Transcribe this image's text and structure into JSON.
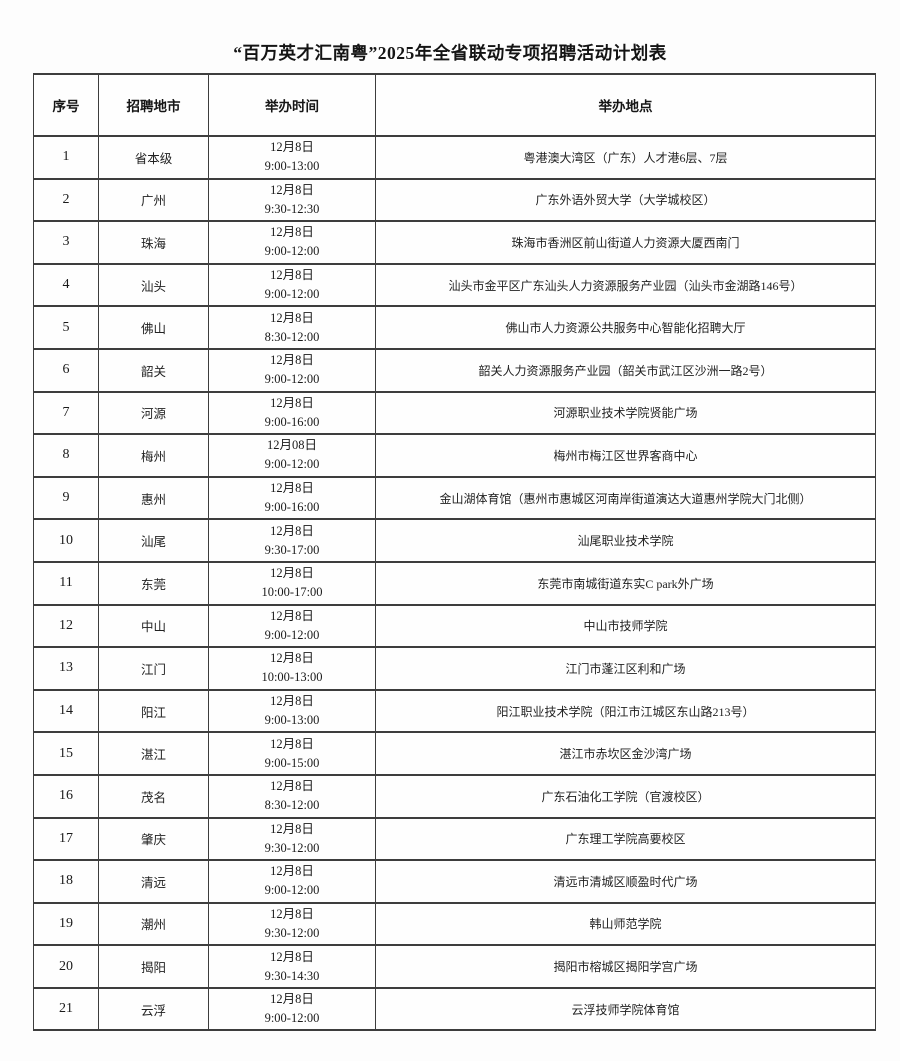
{
  "title": "“百万英才汇南粤”2025年全省联动专项招聘活动计划表",
  "table": {
    "columns": [
      "序号",
      "招聘地市",
      "举办时间",
      "举办地点"
    ],
    "rows": [
      {
        "seq": "1",
        "city": "省本级",
        "date": "12月8日",
        "time": "9:00-13:00",
        "location": "粤港澳大湾区（广东）人才港6层、7层"
      },
      {
        "seq": "2",
        "city": "广州",
        "date": "12月8日",
        "time": "9:30-12:30",
        "location": "广东外语外贸大学（大学城校区）"
      },
      {
        "seq": "3",
        "city": "珠海",
        "date": "12月8日",
        "time": "9:00-12:00",
        "location": "珠海市香洲区前山街道人力资源大厦西南门"
      },
      {
        "seq": "4",
        "city": "汕头",
        "date": "12月8日",
        "time": "9:00-12:00",
        "location": "汕头市金平区广东汕头人力资源服务产业园（汕头市金湖路146号）"
      },
      {
        "seq": "5",
        "city": "佛山",
        "date": "12月8日",
        "time": "8:30-12:00",
        "location": "佛山市人力资源公共服务中心智能化招聘大厅"
      },
      {
        "seq": "6",
        "city": "韶关",
        "date": "12月8日",
        "time": "9:00-12:00",
        "location": "韶关人力资源服务产业园（韶关市武江区沙洲一路2号）"
      },
      {
        "seq": "7",
        "city": "河源",
        "date": "12月8日",
        "time": "9:00-16:00",
        "location": "河源职业技术学院贤能广场"
      },
      {
        "seq": "8",
        "city": "梅州",
        "date": "12月08日",
        "time": "9:00-12:00",
        "location": "梅州市梅江区世界客商中心"
      },
      {
        "seq": "9",
        "city": "惠州",
        "date": "12月8日",
        "time": "9:00-16:00",
        "location": "金山湖体育馆（惠州市惠城区河南岸街道演达大道惠州学院大门北侧）"
      },
      {
        "seq": "10",
        "city": "汕尾",
        "date": "12月8日",
        "time": "9:30-17:00",
        "location": "汕尾职业技术学院"
      },
      {
        "seq": "11",
        "city": "东莞",
        "date": "12月8日",
        "time": "10:00-17:00",
        "location": "东莞市南城街道东实C park外广场"
      },
      {
        "seq": "12",
        "city": "中山",
        "date": "12月8日",
        "time": "9:00-12:00",
        "location": "中山市技师学院"
      },
      {
        "seq": "13",
        "city": "江门",
        "date": "12月8日",
        "time": "10:00-13:00",
        "location": "江门市蓬江区利和广场"
      },
      {
        "seq": "14",
        "city": "阳江",
        "date": "12月8日",
        "time": "9:00-13:00",
        "location": "阳江职业技术学院（阳江市江城区东山路213号）"
      },
      {
        "seq": "15",
        "city": "湛江",
        "date": "12月8日",
        "time": "9:00-15:00",
        "location": "湛江市赤坎区金沙湾广场"
      },
      {
        "seq": "16",
        "city": "茂名",
        "date": "12月8日",
        "time": "8:30-12:00",
        "location": "广东石油化工学院（官渡校区）"
      },
      {
        "seq": "17",
        "city": "肇庆",
        "date": "12月8日",
        "time": "9:30-12:00",
        "location": "广东理工学院高要校区"
      },
      {
        "seq": "18",
        "city": "清远",
        "date": "12月8日",
        "time": "9:00-12:00",
        "location": "清远市清城区顺盈时代广场"
      },
      {
        "seq": "19",
        "city": "潮州",
        "date": "12月8日",
        "time": "9:30-12:00",
        "location": "韩山师范学院"
      },
      {
        "seq": "20",
        "city": "揭阳",
        "date": "12月8日",
        "time": "9:30-14:30",
        "location": "揭阳市榕城区揭阳学宫广场"
      },
      {
        "seq": "21",
        "city": "云浮",
        "date": "12月8日",
        "time": "9:00-12:00",
        "location": "云浮技师学院体育馆"
      }
    ]
  }
}
